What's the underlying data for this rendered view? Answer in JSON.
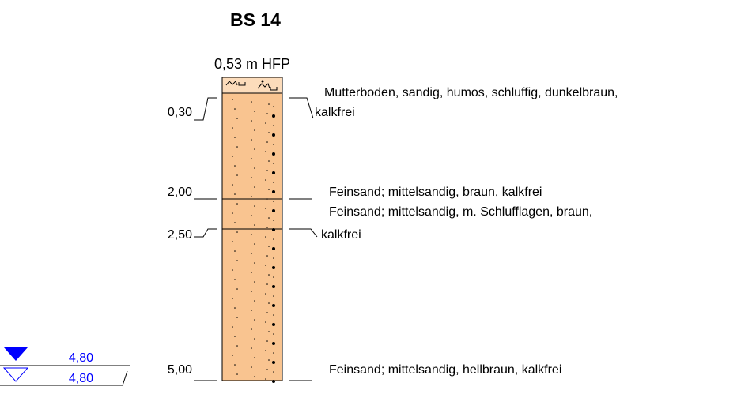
{
  "title": "BS 14",
  "top_label": "0,53 m HFP",
  "layers": [
    {
      "depth": "0,30",
      "description": [
        "Mutterboden, sandig, humos, schluffig, dunkelbraun,",
        "kalkfrei"
      ]
    },
    {
      "depth": "2,00",
      "description": [
        "Feinsand; mittelsandig, braun, kalkfrei"
      ]
    },
    {
      "depth": "2,50",
      "description": [
        "Feinsand; mittelsandig, m. Schlufflagen, braun,",
        "kalkfrei"
      ]
    },
    {
      "depth": "5,00",
      "description": [
        "Feinsand; mittelsandig, hellbraun, kalkfrei"
      ]
    }
  ],
  "water_levels": [
    "4,80",
    "4,80"
  ]
}
